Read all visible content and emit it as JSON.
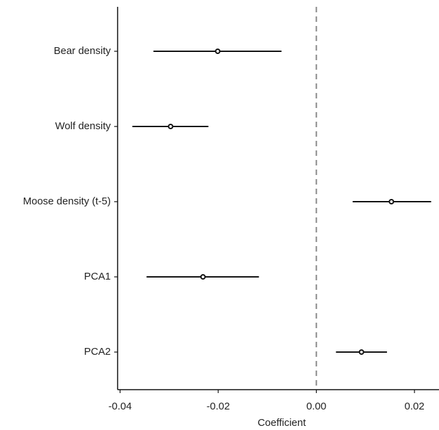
{
  "chart_data": {
    "type": "interval",
    "x_label": "Coefficient",
    "categories": [
      "Bear density",
      "Wolf density",
      "Moose density (t-5)",
      "PCA1",
      "PCA2"
    ],
    "values": [
      -0.0201,
      -0.0297,
      0.0153,
      -0.0231,
      0.0092
    ],
    "lower": [
      -0.0332,
      -0.0375,
      0.0074,
      -0.0346,
      0.004
    ],
    "upper": [
      -0.0071,
      -0.022,
      0.0234,
      -0.0117,
      0.0144
    ],
    "color": "#111111",
    "reference_line": 0,
    "xlim": [
      -0.0405,
      0.025
    ],
    "xticks": [
      -0.04,
      -0.02,
      {
        "value": 0,
        "label": "0.00"
      },
      0.02
    ]
  }
}
